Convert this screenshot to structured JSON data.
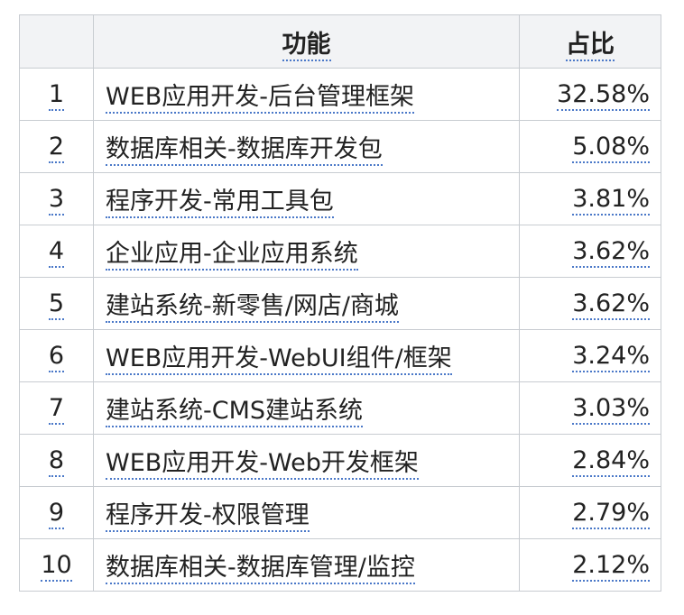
{
  "table": {
    "headers": {
      "index": "",
      "function": "功能",
      "share": "占比"
    },
    "rows": [
      {
        "index": "1",
        "function": "WEB应用开发-后台管理框架",
        "share": "32.58%"
      },
      {
        "index": "2",
        "function": "数据库相关-数据库开发包",
        "share": "5.08%"
      },
      {
        "index": "3",
        "function": "程序开发-常用工具包",
        "share": "3.81%"
      },
      {
        "index": "4",
        "function": "企业应用-企业应用系统",
        "share": "3.62%"
      },
      {
        "index": "5",
        "function": "建站系统-新零售/网店/商城",
        "share": "3.62%"
      },
      {
        "index": "6",
        "function": "WEB应用开发-WebUI组件/框架",
        "share": "3.24%"
      },
      {
        "index": "7",
        "function": "建站系统-CMS建站系统",
        "share": "3.03%"
      },
      {
        "index": "8",
        "function": "WEB应用开发-Web开发框架",
        "share": "2.84%"
      },
      {
        "index": "9",
        "function": "程序开发-权限管理",
        "share": "2.79%"
      },
      {
        "index": "10",
        "function": "数据库相关-数据库管理/监控",
        "share": "2.12%"
      }
    ]
  },
  "colors": {
    "header_bg": "#f2f3f5",
    "border": "#c8ccd1",
    "link_underline": "#4a78c8"
  }
}
